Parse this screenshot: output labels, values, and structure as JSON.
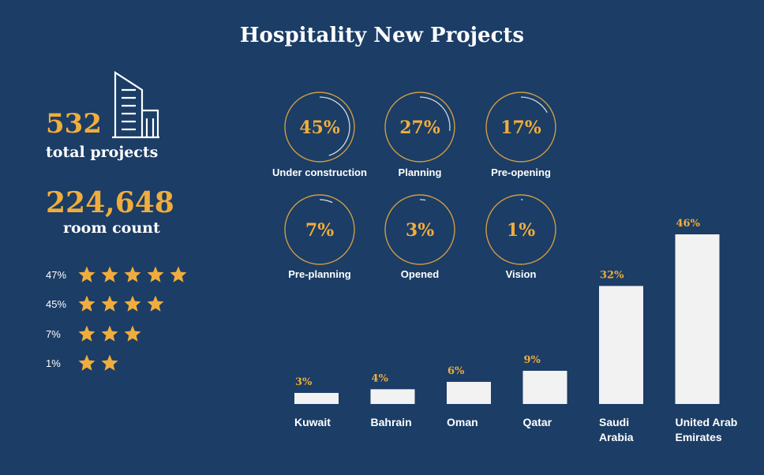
{
  "title": "Hospitality New Projects",
  "stats": {
    "total_projects": {
      "value": "532",
      "label": "total projects"
    },
    "room_count": {
      "value": "224,648",
      "label": "room count"
    }
  },
  "star_ratings": [
    {
      "percent": "47%",
      "stars": 5
    },
    {
      "percent": "45%",
      "stars": 4
    },
    {
      "percent": "7%",
      "stars": 3
    },
    {
      "percent": "1%",
      "stars": 2
    }
  ],
  "colors": {
    "background": "#1b3d66",
    "accent": "#f0ad3c",
    "bar": "#f2f2f2",
    "text": "#ffffff"
  },
  "chart_data": [
    {
      "type": "pie",
      "title": "",
      "categories": [
        "Under construction",
        "Planning",
        "Pre-opening",
        "Pre-planning",
        "Opened",
        "Vision"
      ],
      "values": [
        45,
        27,
        17,
        7,
        3,
        1
      ],
      "labels": [
        "45%",
        "27%",
        "17%",
        "7%",
        "3%",
        "1%"
      ]
    },
    {
      "type": "bar",
      "title": "",
      "categories": [
        "Kuwait",
        "Bahrain",
        "Oman",
        "Qatar",
        "Saudi Arabia",
        "United Arab Emirates"
      ],
      "category_lines": [
        [
          "Kuwait"
        ],
        [
          "Bahrain"
        ],
        [
          "Oman"
        ],
        [
          "Qatar"
        ],
        [
          "Saudi",
          "Arabia"
        ],
        [
          "United Arab",
          "Emirates"
        ]
      ],
      "values": [
        3,
        4,
        6,
        9,
        32,
        46
      ],
      "labels": [
        "3%",
        "4%",
        "6%",
        "9%",
        "32%",
        "46%"
      ],
      "xlabel": "",
      "ylabel": "",
      "ylim": [
        0,
        46
      ]
    }
  ]
}
